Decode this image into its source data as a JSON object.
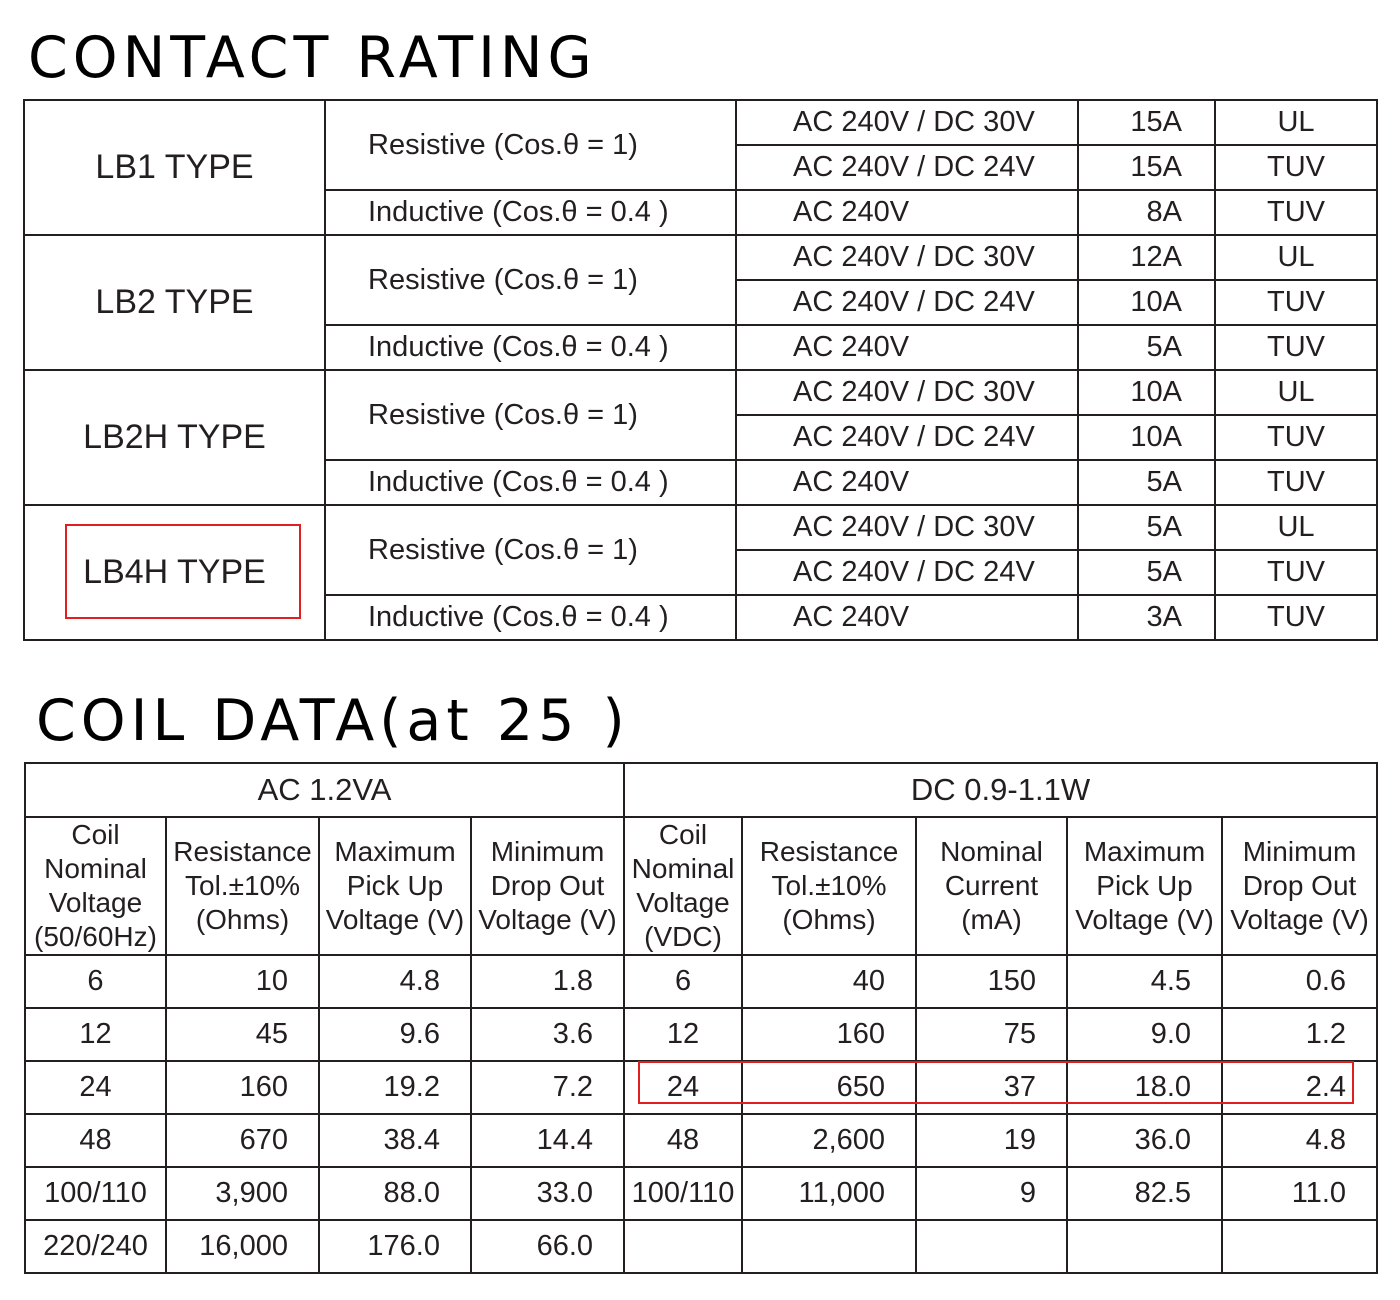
{
  "contact_title": "CONTACT RATING",
  "contact_rows": [
    {
      "type": "LB1 TYPE",
      "resistive": "Resistive (Cos.θ = 1)",
      "inductive": "Inductive (Cos.θ = 0.4 )",
      "r1": {
        "voltage": "AC 240V / DC 30V",
        "current": "15A",
        "cert": "UL"
      },
      "r2": {
        "voltage": "AC 240V / DC 24V",
        "current": "15A",
        "cert": "TUV"
      },
      "r3": {
        "voltage": "AC 240V",
        "current": "8A",
        "cert": "TUV"
      }
    },
    {
      "type": "LB2 TYPE",
      "resistive": "Resistive (Cos.θ = 1)",
      "inductive": "Inductive (Cos.θ = 0.4 )",
      "r1": {
        "voltage": "AC 240V / DC 30V",
        "current": "12A",
        "cert": "UL"
      },
      "r2": {
        "voltage": "AC 240V / DC 24V",
        "current": "10A",
        "cert": "TUV"
      },
      "r3": {
        "voltage": "AC 240V",
        "current": "5A",
        "cert": "TUV"
      }
    },
    {
      "type": "LB2H TYPE",
      "resistive": "Resistive (Cos.θ = 1)",
      "inductive": "Inductive (Cos.θ = 0.4 )",
      "r1": {
        "voltage": "AC 240V / DC 30V",
        "current": "10A",
        "cert": "UL"
      },
      "r2": {
        "voltage": "AC 240V / DC 24V",
        "current": "10A",
        "cert": "TUV"
      },
      "r3": {
        "voltage": "AC 240V",
        "current": "5A",
        "cert": "TUV"
      }
    },
    {
      "type": "LB4H TYPE",
      "resistive": "Resistive (Cos.θ = 1)",
      "inductive": "Inductive (Cos.θ = 0.4 )",
      "r1": {
        "voltage": "AC 240V / DC 30V",
        "current": "5A",
        "cert": "UL"
      },
      "r2": {
        "voltage": "AC 240V / DC 24V",
        "current": "5A",
        "cert": "TUV"
      },
      "r3": {
        "voltage": "AC 240V",
        "current": "3A",
        "cert": "TUV"
      }
    }
  ],
  "coil_title": "COIL DATA(at 25 )",
  "coil_groups": {
    "ac": "AC  1.2VA",
    "dc": "DC  0.9-1.1W"
  },
  "coil_headers": {
    "ac": [
      "Coil Nominal Voltage (50/60Hz)",
      "Resistance Tol.±10% (Ohms)",
      "Maximum Pick Up Voltage (V)",
      "Minimum Drop Out Voltage (V)"
    ],
    "dc": [
      "Coil Nominal Voltage (VDC)",
      "Resistance Tol.±10% (Ohms)",
      "Nominal Current (mA)",
      "Maximum Pick Up Voltage (V)",
      "Minimum Drop Out Voltage (V)"
    ]
  },
  "coil_rows": [
    {
      "ac": [
        "6",
        "10",
        "4.8",
        "1.8"
      ],
      "dc": [
        "6",
        "40",
        "150",
        "4.5",
        "0.6"
      ]
    },
    {
      "ac": [
        "12",
        "45",
        "9.6",
        "3.6"
      ],
      "dc": [
        "12",
        "160",
        "75",
        "9.0",
        "1.2"
      ]
    },
    {
      "ac": [
        "24",
        "160",
        "19.2",
        "7.2"
      ],
      "dc": [
        "24",
        "650",
        "37",
        "18.0",
        "2.4"
      ]
    },
    {
      "ac": [
        "48",
        "670",
        "38.4",
        "14.4"
      ],
      "dc": [
        "48",
        "2,600",
        "19",
        "36.0",
        "4.8"
      ]
    },
    {
      "ac": [
        "100/110",
        "3,900",
        "88.0",
        "33.0"
      ],
      "dc": [
        "100/110",
        "11,000",
        "9",
        "82.5",
        "11.0"
      ]
    },
    {
      "ac": [
        "220/240",
        "16,000",
        "176.0",
        "66.0"
      ],
      "dc": [
        "",
        "",
        "",
        "",
        ""
      ]
    }
  ],
  "highlight_colors": {
    "box": "#e02020"
  }
}
